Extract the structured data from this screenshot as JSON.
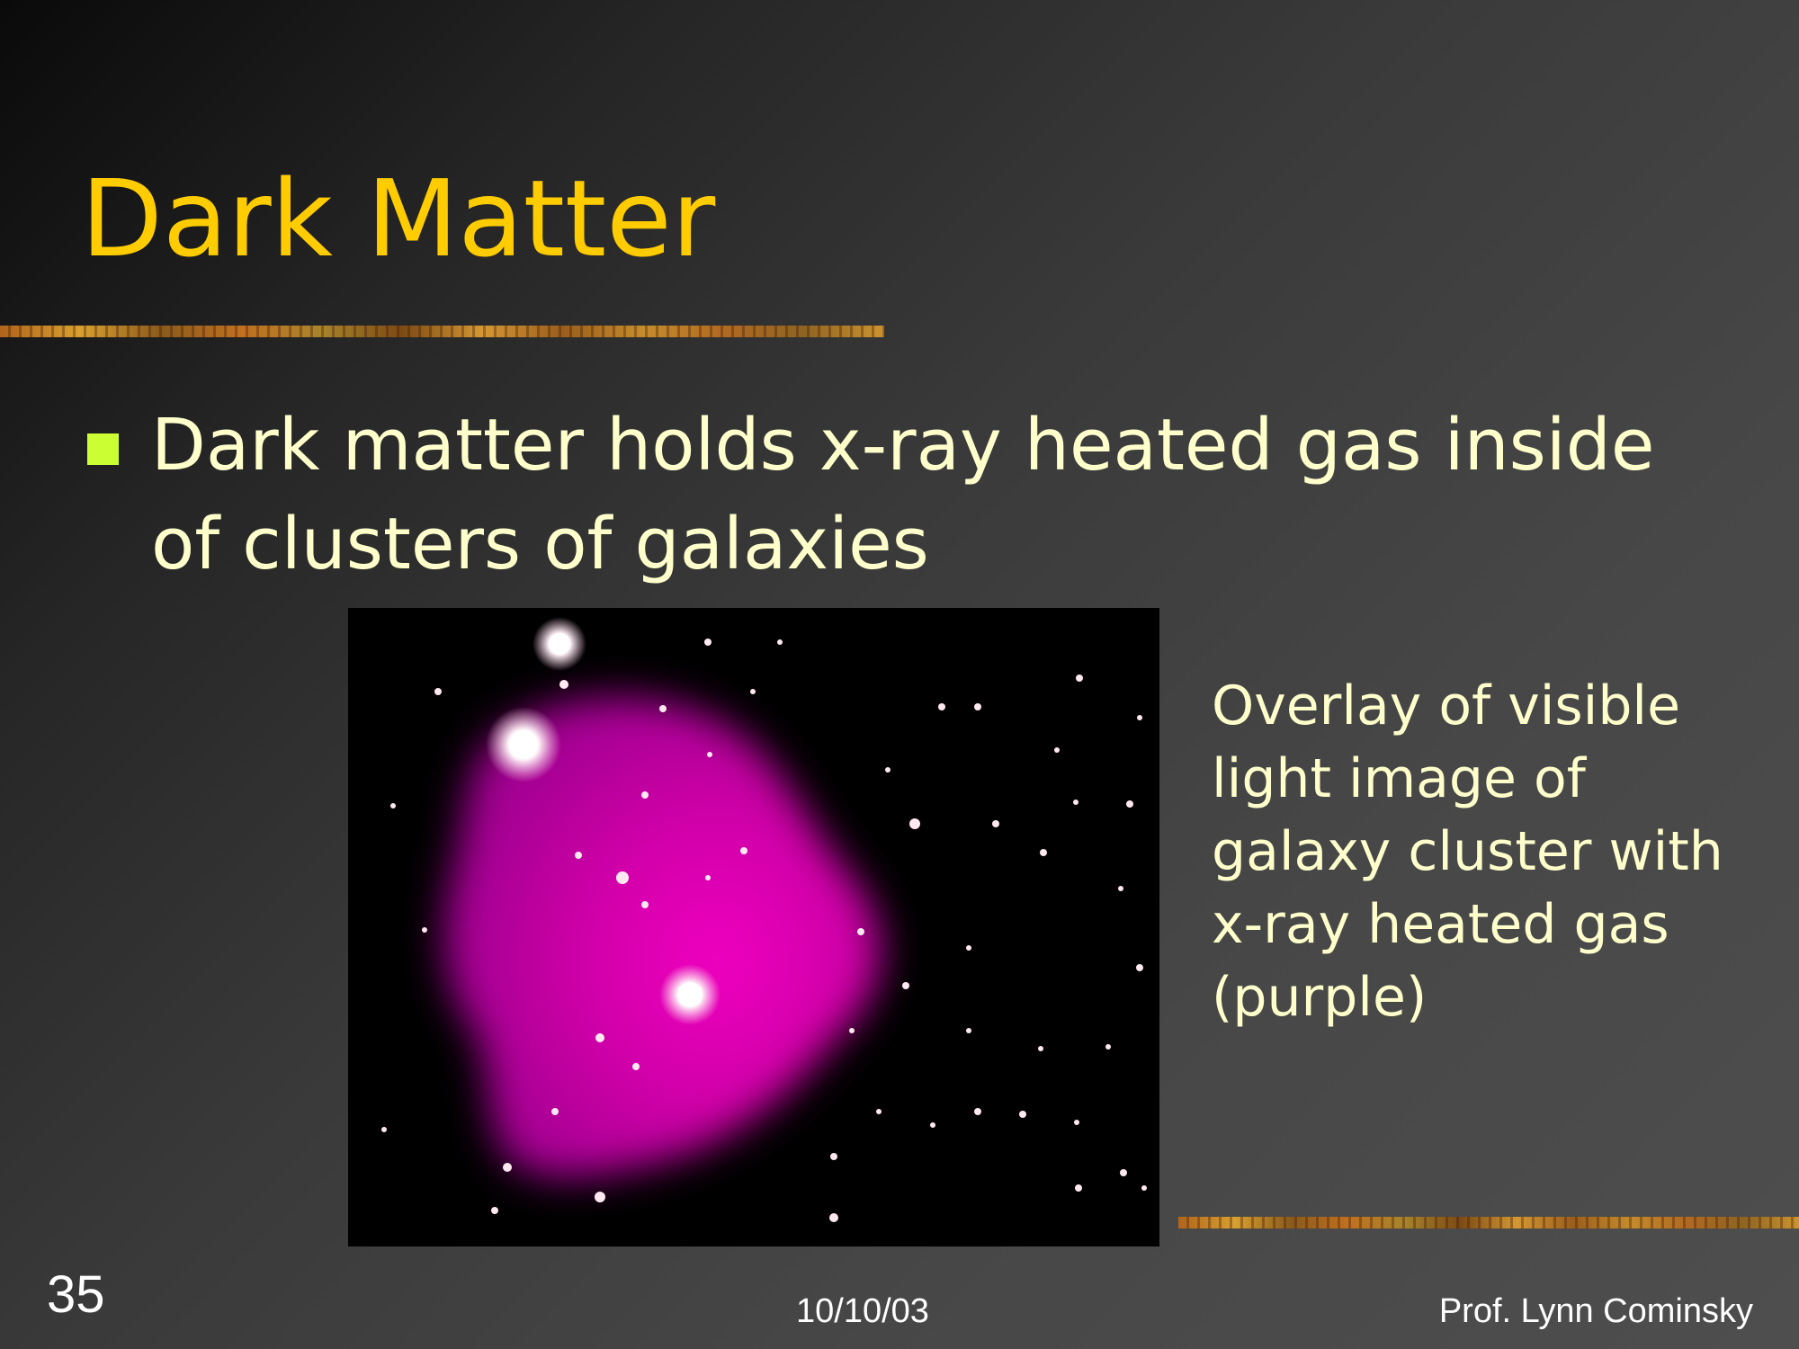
{
  "slide": {
    "title": "Dark Matter",
    "bullets": [
      {
        "text": "Dark matter holds x-ray heated gas inside of clusters of galaxies"
      }
    ],
    "caption": "Overlay of visible light image of galaxy cluster with x-ray heated gas (purple)",
    "footer": {
      "slide_number": "35",
      "date": "10/10/03",
      "author": "Prof. Lynn Cominsky"
    }
  },
  "colors": {
    "title": "#ffcc00",
    "body_text": "#ffffcc",
    "bullet_marker": "#ccff33",
    "xray_gas": "#e000b0",
    "footer_text": "#ffffff"
  }
}
